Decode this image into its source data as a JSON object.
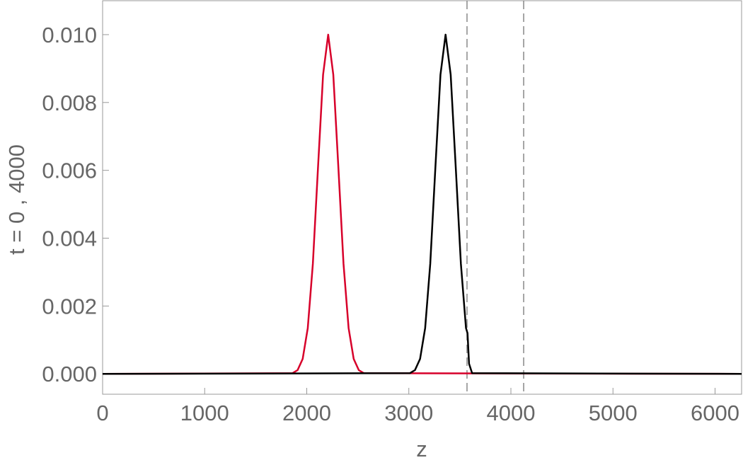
{
  "chart_data": {
    "type": "line",
    "xlabel": "z",
    "ylabel": "t = 0 , 4000",
    "xlim": [
      0,
      6260
    ],
    "ylim": [
      -0.0006,
      0.011
    ],
    "xticks": [
      0,
      1000,
      2000,
      3000,
      4000,
      5000,
      6000
    ],
    "yticks": [
      {
        "value": 0,
        "label": "0.000"
      },
      {
        "value": 0.002,
        "label": "0.002"
      },
      {
        "value": 0.004,
        "label": "0.004"
      },
      {
        "value": 0.006,
        "label": "0.006"
      },
      {
        "value": 0.008,
        "label": "0.008"
      },
      {
        "value": 0.01,
        "label": "0.010"
      }
    ],
    "vlines": [
      3570,
      4125
    ],
    "series": [
      {
        "color": "#d7002a",
        "x": [
          0,
          1860,
          1910,
          1960,
          2010,
          2060,
          2110,
          2160,
          2210,
          2260,
          2310,
          2360,
          2410,
          2460,
          2510,
          2560,
          6260
        ],
        "values": [
          0,
          2e-05,
          0.00011,
          0.00044,
          0.00135,
          0.00325,
          0.00607,
          0.00882,
          0.01,
          0.00882,
          0.00607,
          0.00325,
          0.00135,
          0.00044,
          0.00011,
          2e-05,
          0
        ]
      },
      {
        "color": "#000000",
        "x": [
          0,
          3010,
          3060,
          3110,
          3160,
          3210,
          3260,
          3310,
          3360,
          3410,
          3460,
          3510,
          3560,
          3575,
          3590,
          3620,
          6260
        ],
        "values": [
          0,
          2e-05,
          0.00011,
          0.00044,
          0.00135,
          0.00325,
          0.00607,
          0.00882,
          0.01,
          0.00882,
          0.00607,
          0.00325,
          0.00135,
          0.0012,
          0.0003,
          2e-05,
          0
        ]
      }
    ]
  }
}
